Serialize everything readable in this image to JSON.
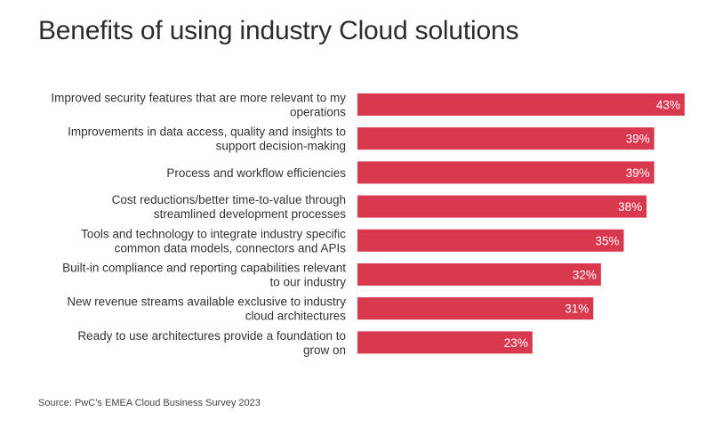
{
  "title": "Benefits of using industry Cloud solutions",
  "source": "Source: PwC’s EMEA Cloud Business Survey 2023",
  "colors": {
    "bar": "#d9394f",
    "text": "#333333",
    "value_text": "#ffffff"
  },
  "chart_data": {
    "type": "bar",
    "orientation": "horizontal",
    "title": "Benefits of using industry Cloud solutions",
    "categories": [
      [
        "Improved security features that are more relevant to my",
        "operations"
      ],
      [
        "Improvements in data access, quality and insights to",
        "support decision-making"
      ],
      [
        "Process and workflow efficiencies"
      ],
      [
        "Cost reductions/better time-to-value through",
        "streamlined development processes"
      ],
      [
        "Tools and technology to integrate industry specific",
        "common data models, connectors and APIs"
      ],
      [
        "Built-in compliance and reporting capabilities relevant",
        "to our industry"
      ],
      [
        "New revenue streams available exclusive to industry",
        "cloud architectures"
      ],
      [
        "Ready to use architectures provide a foundation to",
        "grow on"
      ]
    ],
    "values": [
      43,
      39,
      39,
      38,
      35,
      32,
      31,
      23
    ],
    "value_labels": [
      "43%",
      "39%",
      "39%",
      "38%",
      "35%",
      "32%",
      "31%",
      "23%"
    ],
    "unit": "%",
    "xlim": [
      0,
      43
    ],
    "grid": false,
    "legend": "none"
  }
}
